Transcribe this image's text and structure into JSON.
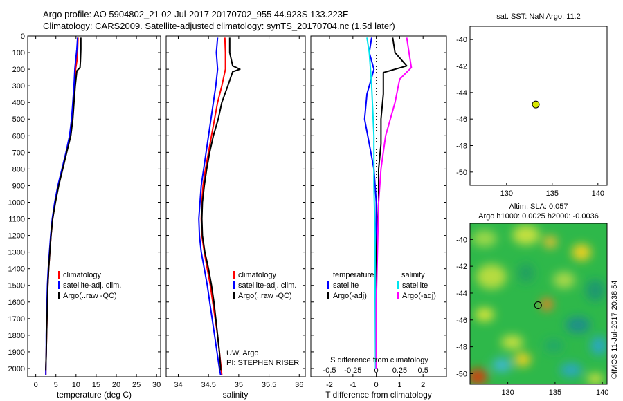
{
  "header": {
    "title_line1": "Argo profile: AO 5904802_21 02-Jul-2017 20170702_955 44.923S 133.223E",
    "title_line2": "Climatology: CARS2009. Satellite-adjusted climatology: synTS_20170704.nc (1.5d later)"
  },
  "colors": {
    "climatology": "#ff0000",
    "satellite": "#0000ff",
    "argo": "#000000",
    "sat_salinity": "#00e5ee",
    "argo_salinity_adj": "#ff00ff"
  },
  "chart_data": [
    {
      "id": "temperature",
      "type": "line",
      "xlabel": "temperature (deg C)",
      "ylabel": "",
      "xlim": [
        -2,
        31
      ],
      "ylim": [
        2050,
        0
      ],
      "xticks": [
        0,
        5,
        10,
        15,
        20,
        25,
        30
      ],
      "yticks": [
        0,
        100,
        200,
        300,
        400,
        500,
        600,
        700,
        800,
        900,
        1000,
        1100,
        1200,
        1300,
        1400,
        1500,
        1600,
        1700,
        1800,
        1900,
        2000
      ],
      "legend": [
        "climatology",
        "satellite-adj. clim.",
        "Argo(..raw -QC)"
      ],
      "series": [
        {
          "name": "climatology",
          "color": "#ff0000",
          "points": [
            [
              10.5,
              10
            ],
            [
              10.4,
              80
            ],
            [
              10.2,
              150
            ],
            [
              9.9,
              200
            ],
            [
              9.6,
              300
            ],
            [
              9.3,
              400
            ],
            [
              9.0,
              500
            ],
            [
              8.5,
              600
            ],
            [
              7.6,
              700
            ],
            [
              6.6,
              800
            ],
            [
              5.6,
              900
            ],
            [
              4.8,
              1000
            ],
            [
              4.2,
              1100
            ],
            [
              3.8,
              1200
            ],
            [
              3.5,
              1300
            ],
            [
              3.2,
              1400
            ],
            [
              3.0,
              1500
            ],
            [
              2.9,
              1600
            ],
            [
              2.8,
              1700
            ],
            [
              2.7,
              1800
            ],
            [
              2.6,
              1900
            ],
            [
              2.5,
              2000
            ],
            [
              2.5,
              2040
            ]
          ]
        },
        {
          "name": "satellite-adj. clim.",
          "color": "#0000ff",
          "points": [
            [
              10.4,
              10
            ],
            [
              10.2,
              80
            ],
            [
              9.9,
              150
            ],
            [
              9.7,
              200
            ],
            [
              9.5,
              300
            ],
            [
              9.2,
              400
            ],
            [
              8.9,
              500
            ],
            [
              8.4,
              600
            ],
            [
              7.5,
              700
            ],
            [
              6.5,
              800
            ],
            [
              5.5,
              900
            ],
            [
              4.7,
              1000
            ],
            [
              4.1,
              1100
            ],
            [
              3.7,
              1200
            ],
            [
              3.4,
              1300
            ],
            [
              3.1,
              1400
            ],
            [
              2.9,
              1500
            ],
            [
              2.8,
              1600
            ],
            [
              2.7,
              1700
            ],
            [
              2.6,
              1800
            ],
            [
              2.6,
              1900
            ],
            [
              2.5,
              2000
            ],
            [
              2.5,
              2040
            ]
          ]
        },
        {
          "name": "Argo(..raw -QC)",
          "color": "#000000",
          "points": [
            [
              11.2,
              10
            ],
            [
              11.2,
              80
            ],
            [
              11.1,
              150
            ],
            [
              11.0,
              190
            ],
            [
              10.2,
              210
            ],
            [
              9.8,
              300
            ],
            [
              9.5,
              400
            ],
            [
              9.2,
              500
            ],
            [
              8.7,
              600
            ],
            [
              7.7,
              700
            ],
            [
              6.7,
              800
            ],
            [
              5.7,
              900
            ],
            [
              4.9,
              1000
            ],
            [
              4.2,
              1100
            ],
            [
              3.8,
              1200
            ],
            [
              3.5,
              1300
            ],
            [
              3.2,
              1400
            ],
            [
              3.0,
              1500
            ],
            [
              2.9,
              1600
            ],
            [
              2.8,
              1700
            ],
            [
              2.7,
              1800
            ],
            [
              2.6,
              1900
            ],
            [
              2.5,
              2000
            ],
            [
              2.5,
              2010
            ]
          ]
        }
      ]
    },
    {
      "id": "salinity",
      "type": "line",
      "xlabel": "salinity",
      "ylabel": "",
      "xlim": [
        33.8,
        36.1
      ],
      "ylim": [
        2050,
        0
      ],
      "xticks": [
        34,
        34.5,
        35,
        35.5,
        36
      ],
      "legend": [
        "climatology",
        "satellite-adj. clim.",
        "Argo(..raw -QC)"
      ],
      "annotation_lines": [
        "UW, Argo",
        "PI: STEPHEN RISER"
      ],
      "series": [
        {
          "name": "climatology",
          "color": "#ff0000",
          "points": [
            [
              34.77,
              10
            ],
            [
              34.78,
              100
            ],
            [
              34.78,
              200
            ],
            [
              34.72,
              300
            ],
            [
              34.65,
              400
            ],
            [
              34.6,
              500
            ],
            [
              34.55,
              600
            ],
            [
              34.5,
              700
            ],
            [
              34.45,
              800
            ],
            [
              34.41,
              900
            ],
            [
              34.39,
              1000
            ],
            [
              34.38,
              1100
            ],
            [
              34.39,
              1200
            ],
            [
              34.43,
              1300
            ],
            [
              34.48,
              1400
            ],
            [
              34.53,
              1500
            ],
            [
              34.57,
              1600
            ],
            [
              34.61,
              1700
            ],
            [
              34.65,
              1800
            ],
            [
              34.68,
              1900
            ],
            [
              34.71,
              2000
            ],
            [
              34.72,
              2040
            ]
          ]
        },
        {
          "name": "satellite-adj. clim.",
          "color": "#0000ff",
          "points": [
            [
              34.65,
              10
            ],
            [
              34.63,
              100
            ],
            [
              34.65,
              200
            ],
            [
              34.62,
              300
            ],
            [
              34.58,
              400
            ],
            [
              34.54,
              500
            ],
            [
              34.5,
              600
            ],
            [
              34.46,
              700
            ],
            [
              34.42,
              800
            ],
            [
              34.38,
              900
            ],
            [
              34.36,
              1000
            ],
            [
              34.34,
              1100
            ],
            [
              34.35,
              1200
            ],
            [
              34.38,
              1300
            ],
            [
              34.43,
              1400
            ],
            [
              34.48,
              1500
            ],
            [
              34.52,
              1600
            ],
            [
              34.56,
              1700
            ],
            [
              34.6,
              1800
            ],
            [
              34.64,
              1900
            ],
            [
              34.68,
              2000
            ],
            [
              34.7,
              2040
            ]
          ]
        },
        {
          "name": "Argo(..raw -QC)",
          "color": "#000000",
          "points": [
            [
              34.85,
              10
            ],
            [
              34.85,
              100
            ],
            [
              34.9,
              180
            ],
            [
              35.02,
              200
            ],
            [
              34.9,
              215
            ],
            [
              34.82,
              300
            ],
            [
              34.72,
              400
            ],
            [
              34.66,
              500
            ],
            [
              34.58,
              600
            ],
            [
              34.52,
              700
            ],
            [
              34.47,
              800
            ],
            [
              34.43,
              900
            ],
            [
              34.4,
              1000
            ],
            [
              34.39,
              1100
            ],
            [
              34.4,
              1200
            ],
            [
              34.44,
              1300
            ],
            [
              34.5,
              1400
            ],
            [
              34.55,
              1500
            ],
            [
              34.59,
              1600
            ],
            [
              34.62,
              1700
            ],
            [
              34.65,
              1800
            ],
            [
              34.68,
              1900
            ],
            [
              34.7,
              2000
            ],
            [
              34.7,
              2010
            ]
          ]
        }
      ]
    },
    {
      "id": "difference",
      "type": "line",
      "xlabel": "T difference from climatology",
      "top_axis_label": "S difference from climatology",
      "xlim": [
        -2.8,
        3.0
      ],
      "ylim": [
        2050,
        0
      ],
      "xticks": [
        -2,
        -1,
        0,
        1,
        2
      ],
      "top_tick_labels": [
        "-0.5",
        "-0.25",
        "0",
        "0.25",
        "0.5"
      ],
      "legend_temperature_header": "temperature",
      "legend_salinity_header": "salinity",
      "legend_entries": [
        "satellite",
        "Argo(-adj)",
        "satellite",
        "Argo(-adj)"
      ],
      "series": [
        {
          "name": "satellite",
          "color": "#0000ff",
          "points": [
            [
              -0.2,
              10
            ],
            [
              -0.3,
              100
            ],
            [
              -0.1,
              200
            ],
            [
              -0.4,
              350
            ],
            [
              -0.5,
              500
            ],
            [
              -0.3,
              650
            ],
            [
              -0.1,
              800
            ],
            [
              0.0,
              1000
            ],
            [
              0.0,
              1300
            ],
            [
              0.0,
              1600
            ],
            [
              0.0,
              2000
            ]
          ]
        },
        {
          "name": "Argo(-adj)",
          "color": "#000000",
          "points": [
            [
              0.7,
              10
            ],
            [
              0.8,
              100
            ],
            [
              1.3,
              180
            ],
            [
              0.3,
              220
            ],
            [
              0.3,
              350
            ],
            [
              0.2,
              500
            ],
            [
              0.2,
              650
            ],
            [
              0.1,
              800
            ],
            [
              0.1,
              1000
            ],
            [
              0.0,
              1300
            ],
            [
              0.0,
              1600
            ],
            [
              0.0,
              2000
            ]
          ]
        },
        {
          "name": "satellite",
          "color": "#00e5ee",
          "points": [
            [
              -0.4,
              10
            ],
            [
              -0.3,
              100
            ],
            [
              -0.2,
              300
            ],
            [
              -0.1,
              600
            ],
            [
              -0.1,
              900
            ],
            [
              -0.05,
              1200
            ],
            [
              -0.05,
              1500
            ],
            [
              -0.03,
              2000
            ]
          ]
        },
        {
          "name": "Argo(-adj)",
          "color": "#ff00ff",
          "points": [
            [
              1.3,
              10
            ],
            [
              1.4,
              100
            ],
            [
              1.5,
              190
            ],
            [
              1.0,
              260
            ],
            [
              0.8,
              400
            ],
            [
              0.4,
              600
            ],
            [
              0.2,
              800
            ],
            [
              0.1,
              1000
            ],
            [
              0.05,
              1300
            ],
            [
              0.0,
              1600
            ],
            [
              0.0,
              2000
            ]
          ]
        }
      ]
    },
    {
      "id": "sst-map",
      "type": "scatter",
      "title": "sat. SST: NaN Argo: 11.2",
      "xlim": [
        126,
        141
      ],
      "ylim": [
        -51,
        -39
      ],
      "xticks": [
        130,
        135,
        140
      ],
      "yticks": [
        -40,
        -42,
        -44,
        -46,
        -48,
        -50
      ],
      "points": [
        [
          133.2,
          -44.9
        ]
      ]
    },
    {
      "id": "sla-map",
      "type": "heatmap",
      "title_line1": "Altim. SLA: 0.057",
      "title_line2": "Argo h1000: 0.0025 h2000: -0.0036",
      "xlim": [
        126,
        140.5
      ],
      "ylim": [
        -50.8,
        -38.8
      ],
      "xticks": [
        130,
        135,
        140
      ],
      "yticks": [
        -40,
        -42,
        -44,
        -46,
        -48,
        -50
      ],
      "points": [
        [
          133.2,
          -44.9
        ]
      ]
    }
  ],
  "watermark": "©IMOS 11-Jul-2017 20:38:54"
}
